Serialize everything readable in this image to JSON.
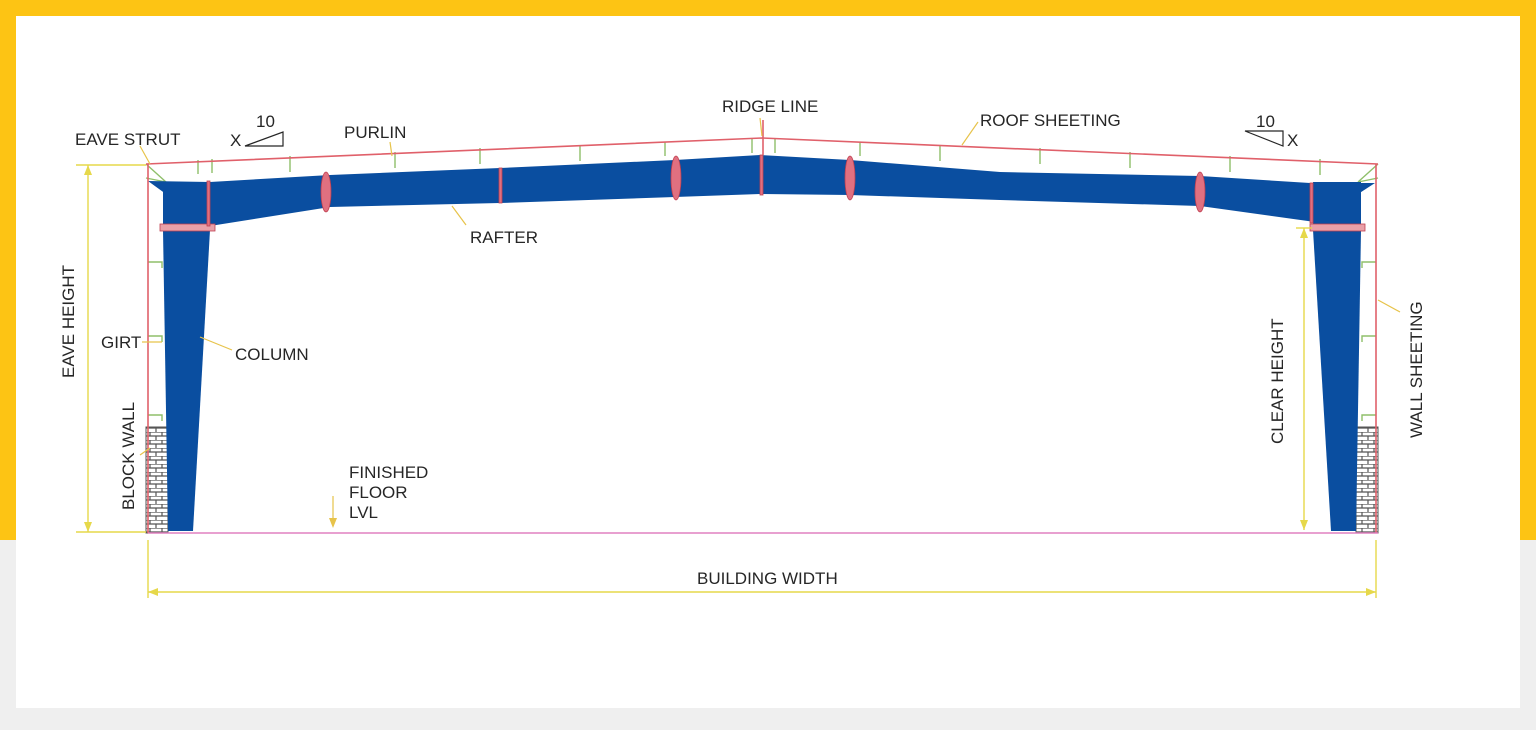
{
  "labels": {
    "ridge_line": "RIDGE LINE",
    "roof_sheeting": "ROOF SHEETING",
    "eave_strut": "EAVE STRUT",
    "purlin": "PURLIN",
    "rafter": "RAFTER",
    "eave_height": "EAVE HEIGHT",
    "girt": "GIRT",
    "column": "COLUMN",
    "block_wall": "BLOCK WALL",
    "finished_floor_1": "FINISHED",
    "finished_floor_2": "FLOOR",
    "finished_floor_3": "LVL",
    "clear_height": "CLEAR HEIGHT",
    "wall_sheeting": "WALL SHEETING",
    "building_width": "BUILDING WIDTH"
  },
  "slope": {
    "left_run": "10",
    "left_rise": "X",
    "right_run": "10",
    "right_rise": "X"
  },
  "colors": {
    "frame": "#fdc414",
    "steel": "#0a4ea0",
    "sheeting": "#e0606a",
    "dimension": "#e6d84a",
    "members": "#8fbf6a",
    "leader": "#e7c34a",
    "brick": "#555555"
  }
}
